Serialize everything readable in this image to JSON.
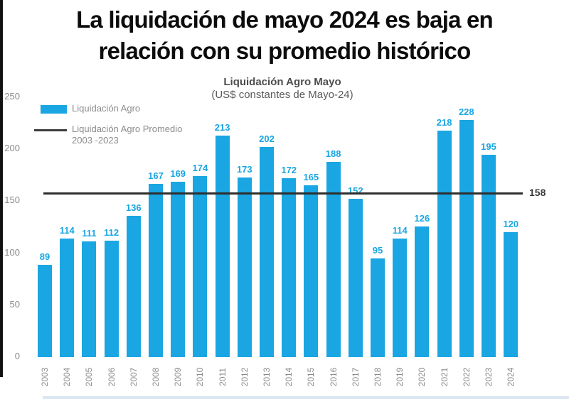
{
  "page": {
    "title_line1": "La liquidación de mayo 2024 es baja en",
    "title_line2": "relación con su promedio histórico"
  },
  "chart_data": {
    "type": "bar",
    "title": "Liquidación Agro Mayo",
    "subtitle": "(US$ constantes de Mayo-24)",
    "categories": [
      "2003",
      "2004",
      "2005",
      "2006",
      "2007",
      "2008",
      "2009",
      "2010",
      "2011",
      "2012",
      "2013",
      "2014",
      "2015",
      "2016",
      "2017",
      "2018",
      "2019",
      "2020",
      "2021",
      "2022",
      "2023",
      "2024"
    ],
    "values": [
      89,
      114,
      111,
      112,
      136,
      167,
      169,
      174,
      213,
      173,
      202,
      172,
      165,
      188,
      152,
      95,
      114,
      126,
      218,
      228,
      195,
      120
    ],
    "series_name": "Liquidación Agro",
    "average_line": {
      "value": 158,
      "label": "158"
    },
    "legend": [
      {
        "swatch": "bar",
        "label": "Liquidación Agro"
      },
      {
        "swatch": "line",
        "label": "Liquidación Agro Promedio",
        "label2": "2003 -2023"
      }
    ],
    "ylim": [
      0,
      250
    ],
    "yticks": [
      0,
      50,
      100,
      150,
      200,
      250
    ],
    "xlabel": "",
    "ylabel": "",
    "grid": false,
    "legend_position": "top-left",
    "colors": {
      "bar": "#1aa6e2",
      "data_label": "#1aa6e2",
      "average_line": "#2e2e2e",
      "axis_text": "#8a8a8a",
      "title_text": "#0c0c0c"
    }
  }
}
